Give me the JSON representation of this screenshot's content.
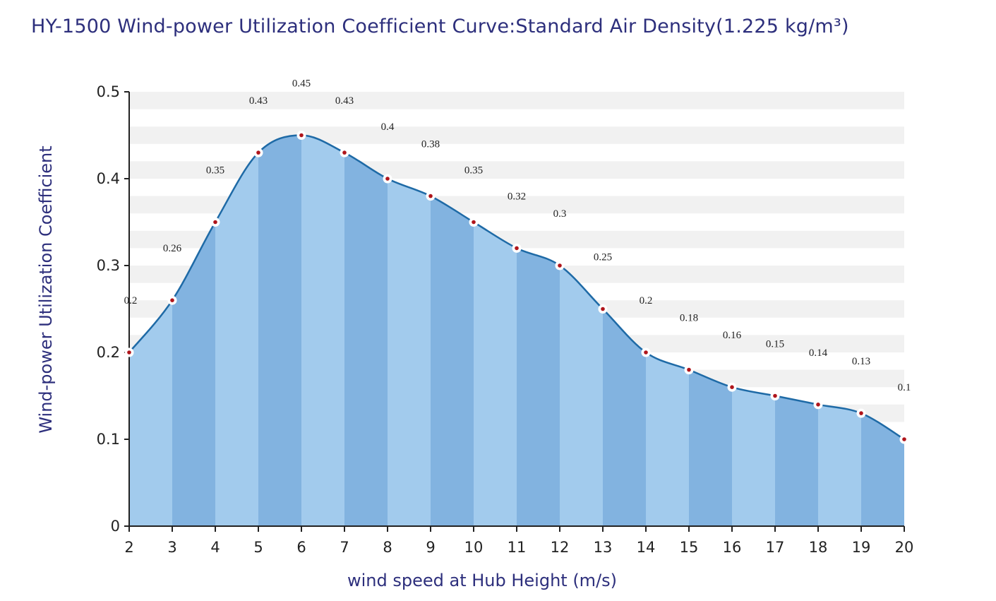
{
  "chart_data": {
    "type": "area",
    "title": "HY-1500  Wind-power Utilization Coefficient  Curve:Standard Air Density(1.225 kg/m³)",
    "xlabel": "wind speed at Hub Height  (m/s)",
    "ylabel": "Wind-power Utilization Coefficient",
    "x": [
      2,
      3,
      4,
      5,
      6,
      7,
      8,
      9,
      10,
      11,
      12,
      13,
      14,
      15,
      16,
      17,
      18,
      19,
      20
    ],
    "values": [
      0.2,
      0.26,
      0.35,
      0.43,
      0.45,
      0.43,
      0.4,
      0.38,
      0.35,
      0.32,
      0.3,
      0.25,
      0.2,
      0.18,
      0.16,
      0.15,
      0.14,
      0.13,
      0.1
    ],
    "data_labels": [
      "0.2",
      "0.26",
      "0.35",
      "0.43",
      "0.45",
      "0.43",
      "0.4",
      "0.38",
      "0.35",
      "0.32",
      "0.3",
      "0.25",
      "0.2",
      "0.18",
      "0.16",
      "0.15",
      "0.14",
      "0.13",
      "0.1"
    ],
    "xlim": [
      2,
      20
    ],
    "ylim": [
      0,
      0.5
    ],
    "yticks": [
      "0",
      "0.1",
      "0.2",
      "0.3",
      "0.4",
      "0.5"
    ],
    "xticks": [
      "2",
      "3",
      "4",
      "5",
      "6",
      "7",
      "8",
      "9",
      "10",
      "11",
      "12",
      "13",
      "14",
      "15",
      "16",
      "17",
      "18",
      "19",
      "20"
    ],
    "grid": "alternating horizontal bands",
    "colors": {
      "fill_light": "#a2cbed",
      "fill_dark": "#82b3e0",
      "line": "#1e6aa6",
      "marker": "#b0151b",
      "text": "#2d2f7c",
      "band": "#f1f1f1"
    }
  }
}
